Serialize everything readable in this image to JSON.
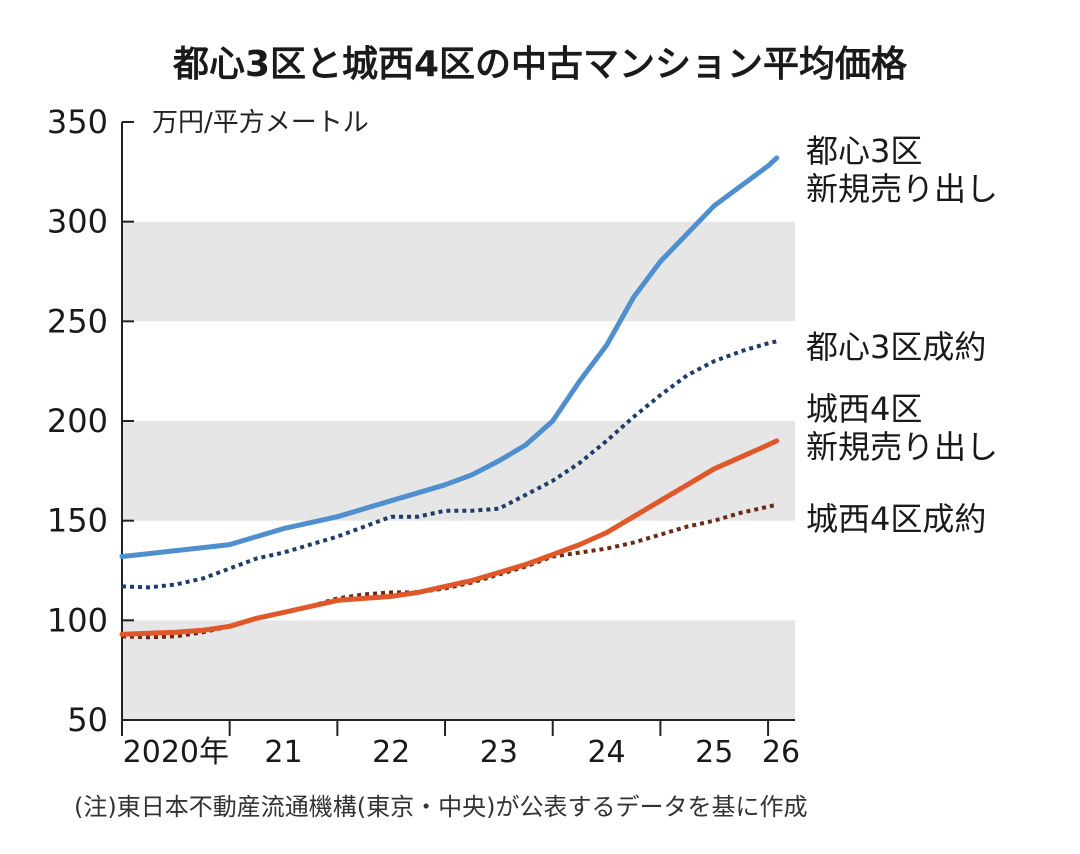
{
  "chart_data": {
    "type": "line",
    "title": "都心3区と城西4区の中古マンション平均価格",
    "unit_label": "万円/平方メートル",
    "note": "(注)東日本不動産流通機構(東京・中央)が公表するデータを基に作成",
    "ylim": [
      50,
      350
    ],
    "y_ticks": [
      50,
      100,
      150,
      200,
      250,
      300,
      350
    ],
    "xlim": [
      2020,
      2026.25
    ],
    "x_ticks": [
      {
        "value": 2020,
        "label": "2020年"
      },
      {
        "value": 2021,
        "label": "21"
      },
      {
        "value": 2022,
        "label": "22"
      },
      {
        "value": 2023,
        "label": "23"
      },
      {
        "value": 2024,
        "label": "24"
      },
      {
        "value": 2025,
        "label": "25"
      },
      {
        "value": 2026,
        "label": "26"
      }
    ],
    "x": [
      2020.0,
      2020.25,
      2020.5,
      2020.75,
      2021.0,
      2021.25,
      2021.5,
      2021.75,
      2022.0,
      2022.25,
      2022.5,
      2022.75,
      2023.0,
      2023.25,
      2023.5,
      2023.75,
      2024.0,
      2024.25,
      2024.5,
      2024.75,
      2025.0,
      2025.25,
      2025.5,
      2025.75,
      2026.0,
      2026.08
    ],
    "series": [
      {
        "name": "都心3区 新規売り出し",
        "label_lines": [
          "都心3区",
          "新規売り出し"
        ],
        "color": "#4f8fcd",
        "style": "solid",
        "values": [
          132,
          133.5,
          135,
          136.5,
          138,
          142,
          146,
          149,
          152,
          156,
          160,
          164,
          168,
          173,
          180,
          188,
          200,
          220,
          238,
          262,
          280,
          294,
          308,
          318,
          328,
          332
        ]
      },
      {
        "name": "都心3区成約",
        "label_lines": [
          "都心3区成約"
        ],
        "color": "#1f3d6b",
        "style": "dotted",
        "values": [
          117,
          116.5,
          118,
          121,
          126,
          131,
          134,
          138,
          142,
          147,
          152,
          152,
          155,
          155,
          156,
          163,
          170,
          179,
          190,
          202,
          213,
          223,
          230,
          235,
          239,
          240
        ]
      },
      {
        "name": "城西4区 新規売り出し",
        "label_lines": [
          "城西4区",
          "新規売り出し"
        ],
        "color": "#e0582a",
        "style": "solid",
        "values": [
          93,
          93.5,
          94,
          95,
          97,
          101,
          104,
          107,
          110,
          111,
          112,
          114,
          117,
          120,
          124,
          128,
          133,
          138,
          144,
          152,
          160,
          168,
          176,
          182,
          188,
          190
        ]
      },
      {
        "name": "城西4区成約",
        "label_lines": [
          "城西4区成約"
        ],
        "color": "#6b2a16",
        "style": "dotted",
        "values": [
          92,
          91.5,
          92,
          94,
          97,
          101,
          104,
          107,
          111,
          113,
          114,
          114,
          116,
          119,
          123,
          127,
          132,
          134,
          136,
          139,
          143,
          147,
          150,
          154,
          157,
          158
        ]
      }
    ]
  }
}
